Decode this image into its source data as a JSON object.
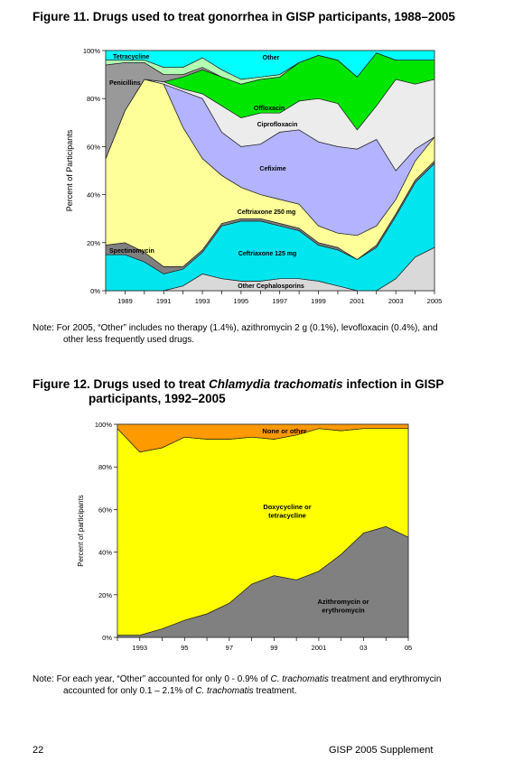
{
  "figure11": {
    "title": "Figure 11. Drugs used to treat gonorrhea in GISP participants, 1988–2005",
    "note": "Note: For 2005, “Other” includes no therapy (1.4%), azithromycin 2 g (0.1%), levofloxacin (0.4%), and",
    "note_cont": "other less frequently used drugs."
  },
  "figure12": {
    "title_pre": "Figure 12. Drugs used to treat ",
    "title_italic": "Chlamydia trachomatis",
    "title_post": " infection in GISP",
    "title_line2": "participants, 1992–2005",
    "note_l1_a": "Note: For each year, “Other” accounted for only 0 - 0.9% of ",
    "note_l1_i": "C. trachomatis",
    "note_l1_b": " treatment and erythromycin",
    "note_l2_a": "accounted for only 0.1 – 2.1% of ",
    "note_l2_i": "C. trachomatis",
    "note_l2_b": " treatment."
  },
  "footer": {
    "page_number": "22",
    "publication": "GISP 2005 Supplement"
  },
  "chart_data": [
    {
      "type": "area",
      "stacked": true,
      "title": "",
      "xlabel": "",
      "ylabel": "Percent of Participants",
      "x": [
        1988,
        1989,
        1990,
        1991,
        1992,
        1993,
        1994,
        1995,
        1996,
        1997,
        1998,
        1999,
        2000,
        2001,
        2002,
        2003,
        2004,
        2005
      ],
      "xticks": [
        "1989",
        "1991",
        "1993",
        "1995",
        "1997",
        "1999",
        "2001",
        "2003",
        "2005"
      ],
      "yticks": [
        "0%",
        "20%",
        "40%",
        "60%",
        "80%",
        "100%"
      ],
      "ylim": [
        0,
        100
      ],
      "legend": "labels inside areas",
      "series": [
        {
          "name": "Other Cephalosporins",
          "color": "#d9d9d9",
          "values": [
            0,
            0,
            0,
            0,
            2,
            7,
            5,
            4,
            4,
            5,
            5,
            4,
            2,
            0,
            0,
            5,
            14,
            18
          ]
        },
        {
          "name": "Ceftriaxone 125 mg",
          "color": "#00e5ee",
          "values": [
            15,
            15,
            12,
            7,
            7,
            9,
            22,
            25,
            25,
            22,
            20,
            15,
            15,
            13,
            18,
            26,
            31,
            35
          ]
        },
        {
          "name": "Spectinomycin",
          "color": "#808080",
          "values": [
            4,
            5,
            4,
            3,
            1,
            1,
            1,
            1,
            1,
            1,
            1,
            1,
            1,
            0,
            1,
            1,
            1,
            1
          ]
        },
        {
          "name": "Ceftriaxone 250 mg",
          "color": "#ffff99",
          "values": [
            36,
            55,
            72,
            76,
            58,
            38,
            20,
            13,
            10,
            10,
            10,
            7,
            6,
            10,
            8,
            6,
            8,
            10
          ]
        },
        {
          "name": "Cefixime",
          "color": "#b3b3ff",
          "values": [
            0,
            0,
            0,
            0,
            15,
            25,
            18,
            17,
            21,
            28,
            31,
            35,
            36,
            36,
            36,
            12,
            5,
            0
          ]
        },
        {
          "name": "Ciprofloxacin",
          "color": "#ececec",
          "values": [
            0,
            0,
            0,
            1,
            1,
            2,
            11,
            12,
            13,
            8,
            12,
            18,
            18,
            8,
            14,
            38,
            27,
            24
          ]
        },
        {
          "name": "Offloxacin",
          "color": "#00e600",
          "values": [
            0,
            0,
            0,
            0,
            5,
            10,
            12,
            14,
            14,
            15,
            16,
            18,
            18,
            22,
            22,
            8,
            10,
            8
          ]
        },
        {
          "name": "Penicillins",
          "color": "#999999",
          "values": [
            39,
            20,
            7,
            3,
            1,
            1,
            0,
            0,
            0,
            0,
            0,
            0,
            0,
            0,
            0,
            0,
            0,
            0
          ]
        },
        {
          "name": "Tetracycline",
          "color": "#b3ffb3",
          "values": [
            2,
            1,
            1,
            3,
            3,
            4,
            3,
            2,
            1,
            1,
            0,
            0,
            0,
            0,
            0,
            0,
            0,
            0
          ]
        },
        {
          "name": "Other",
          "color": "#00ffff",
          "values": [
            4,
            4,
            4,
            7,
            7,
            3,
            8,
            12,
            11,
            10,
            5,
            2,
            4,
            11,
            1,
            4,
            4,
            4
          ]
        }
      ],
      "annotations": [
        "Tetracycline",
        "Other",
        "Penicillins",
        "Offloxacin",
        "Ciprofloxacin",
        "Cefixime",
        "Ceftriaxone 250 mg",
        "Spectinomycin",
        "Ceftriaxone 125 mg",
        "Other Cephalosporins"
      ]
    },
    {
      "type": "area",
      "stacked": true,
      "title": "",
      "xlabel": "",
      "ylabel": "Percent of participants",
      "x": [
        1992,
        1993,
        1994,
        1995,
        1996,
        1997,
        1998,
        1999,
        2000,
        2001,
        2002,
        2003,
        2004,
        2005
      ],
      "xticks": [
        "1993",
        "95",
        "97",
        "99",
        "2001",
        "03",
        "05"
      ],
      "yticks": [
        "0%",
        "20%",
        "40%",
        "60%",
        "80%",
        "100%"
      ],
      "ylim": [
        0,
        100
      ],
      "legend": "labels inside areas",
      "series": [
        {
          "name": "Azithromycin or erythromycin",
          "color": "#808080",
          "values": [
            1,
            1,
            4,
            8,
            11,
            16,
            25,
            29,
            27,
            31,
            39,
            49,
            52,
            47
          ]
        },
        {
          "name": "Doxycycline or tetracycline",
          "color": "#ffff00",
          "values": [
            97,
            86,
            85,
            86,
            82,
            77,
            69,
            64,
            68,
            67,
            58,
            49,
            46,
            51
          ]
        },
        {
          "name": "None or other",
          "color": "#ff9900",
          "values": [
            2,
            13,
            11,
            6,
            7,
            7,
            6,
            7,
            5,
            2,
            3,
            2,
            2,
            2
          ]
        }
      ],
      "annotations": [
        "None or other",
        "Doxycycline or tetracycline",
        "Azithromycin or erythromycin"
      ]
    }
  ]
}
